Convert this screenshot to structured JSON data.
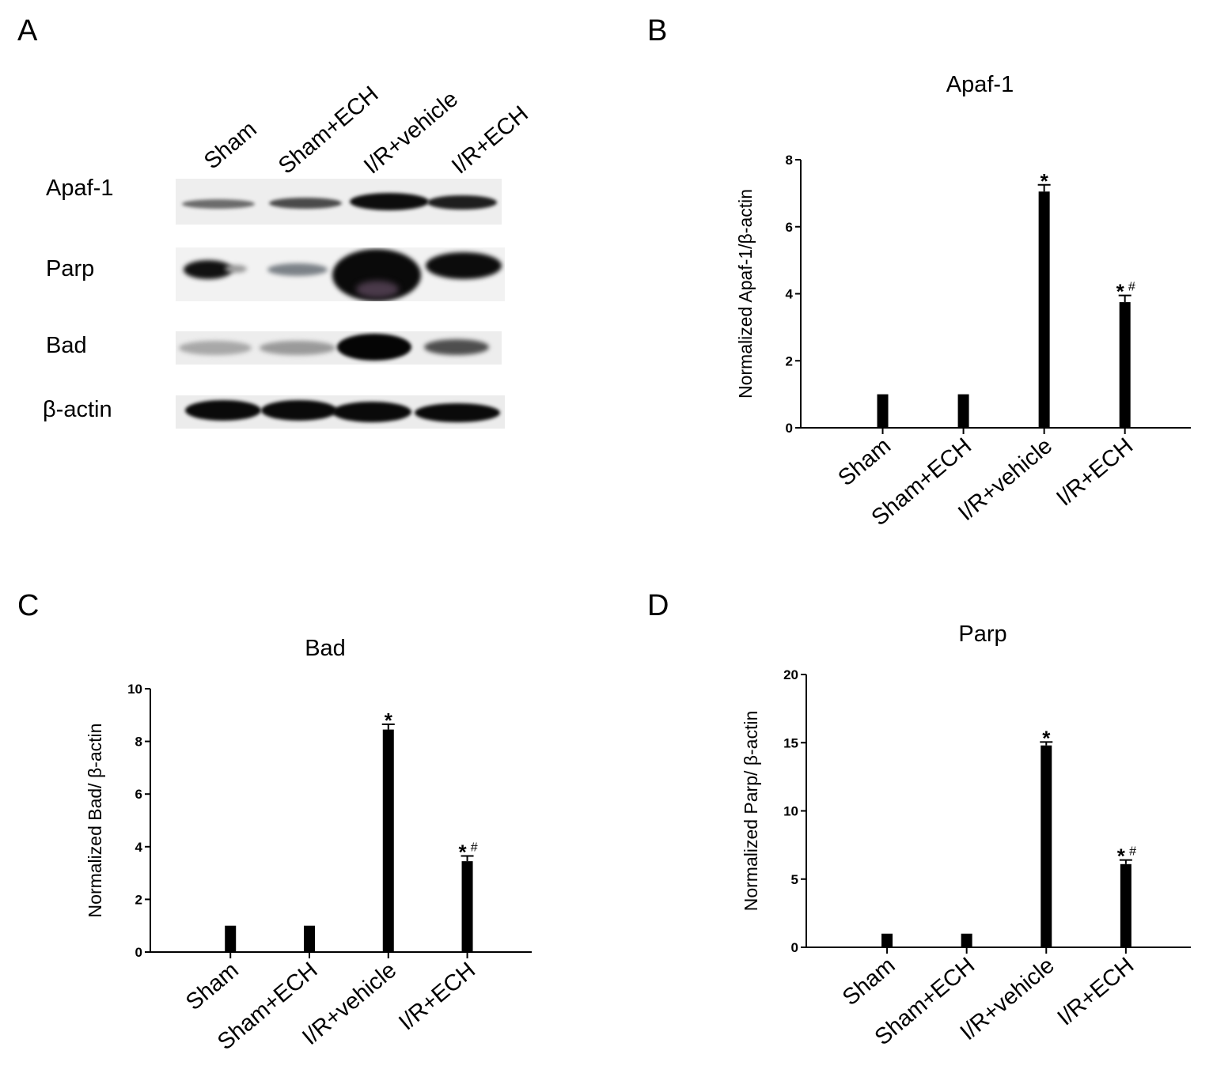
{
  "panels": {
    "a": "A",
    "b": "B",
    "c": "C",
    "d": "D"
  },
  "blot": {
    "lanes": [
      "Sham",
      "Sham+ECH",
      "I/R+vehicle",
      "I/R+ECH"
    ],
    "proteins": [
      "Apaf-1",
      "Parp",
      "Bad",
      "β-actin"
    ]
  },
  "chart_data": [
    {
      "panel": "B",
      "type": "bar",
      "title": "Apaf-1",
      "xlabel": "",
      "ylabel": "Normalized  Apaf-1/β-actin",
      "categories": [
        "Sham",
        "Sham+ECH",
        "I/R+vehicle",
        "I/R+ECH"
      ],
      "values": [
        1.0,
        1.0,
        7.05,
        3.75
      ],
      "errors": [
        0,
        0,
        0.2,
        0.2
      ],
      "annotations": [
        "",
        "",
        "*",
        "*#"
      ],
      "ylim": [
        0,
        8
      ],
      "yticks": [
        0,
        2,
        4,
        6,
        8
      ],
      "grid": false,
      "color": "#000000"
    },
    {
      "panel": "C",
      "type": "bar",
      "title": "Bad",
      "xlabel": "",
      "ylabel": "Normalized  Bad/ β-actin",
      "categories": [
        "Sham",
        "Sham+ECH",
        "I/R+vehicle",
        "I/R+ECH"
      ],
      "values": [
        1.0,
        1.0,
        8.45,
        3.45
      ],
      "errors": [
        0,
        0,
        0.2,
        0.2
      ],
      "annotations": [
        "",
        "",
        "*",
        "*#"
      ],
      "ylim": [
        0,
        10
      ],
      "yticks": [
        0,
        2,
        4,
        6,
        8,
        10
      ],
      "grid": false,
      "color": "#000000"
    },
    {
      "panel": "D",
      "type": "bar",
      "title": "Parp",
      "xlabel": "",
      "ylabel": "Normalized  Parp/ β-actin",
      "categories": [
        "Sham",
        "Sham+ECH",
        "I/R+vehicle",
        "I/R+ECH"
      ],
      "values": [
        1.0,
        1.0,
        14.8,
        6.1
      ],
      "errors": [
        0,
        0,
        0.25,
        0.3
      ],
      "annotations": [
        "",
        "",
        "*",
        "*#"
      ],
      "ylim": [
        0,
        20
      ],
      "yticks": [
        0,
        5,
        10,
        15,
        20
      ],
      "grid": false,
      "color": "#000000"
    }
  ]
}
